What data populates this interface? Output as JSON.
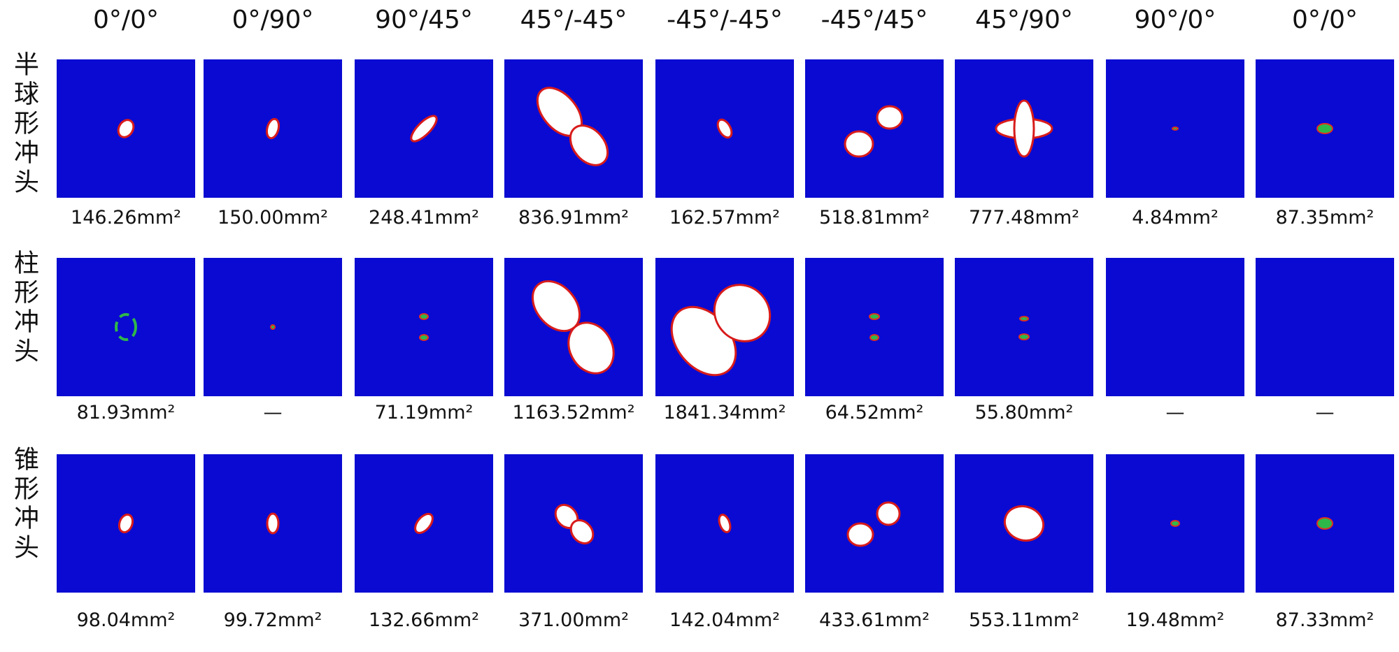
{
  "column_headers": [
    "0°/0°",
    "0°/90°",
    "90°/45°",
    "45°/-45°",
    "-45°/-45°",
    "-45°/45°",
    "45°/90°",
    "90°/0°",
    "0°/0°"
  ],
  "rows": [
    {
      "label": "半球形冲头",
      "areas": [
        "146.26mm²",
        "150.00mm²",
        "248.41mm²",
        "836.91mm²",
        "162.57mm²",
        "518.81mm²",
        "777.48mm²",
        "4.84mm²",
        "87.35mm²"
      ]
    },
    {
      "label": "柱形冲头",
      "areas": [
        "81.93mm²",
        "—",
        "71.19mm²",
        "1163.52mm²",
        "1841.34mm²",
        "64.52mm²",
        "55.80mm²",
        "—",
        "—"
      ]
    },
    {
      "label": "锥形冲头",
      "areas": [
        "98.04mm²",
        "99.72mm²",
        "132.66mm²",
        "371.00mm²",
        "142.04mm²",
        "433.61mm²",
        "553.11mm²",
        "19.48mm²",
        "87.33mm²"
      ]
    }
  ]
}
